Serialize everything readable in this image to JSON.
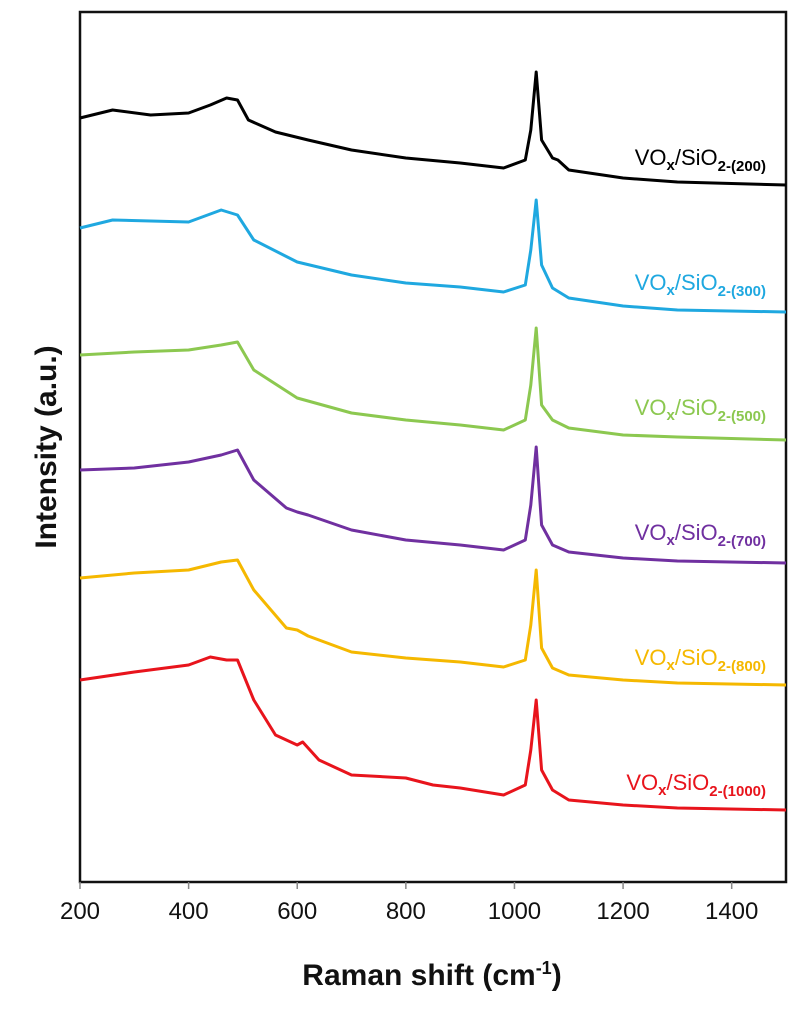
{
  "chart_data": {
    "type": "line",
    "title": "",
    "xlabel": "Raman shift (cm",
    "xlabel_sup": "-1",
    "xlabel_end": ")",
    "ylabel": "Intensity (a.u.)",
    "xlim": [
      200,
      1500
    ],
    "ylim": [
      0,
      870
    ],
    "xticks": [
      "200",
      "400",
      "600",
      "800",
      "1000",
      "1200",
      "1400"
    ],
    "grid": false,
    "legend": "inline labels at right end of each curve",
    "series": [
      {
        "label": {
          "a": "VO",
          "b": "x",
          "c": "/SiO",
          "d": "2-(200)"
        },
        "color": "#000000",
        "x": [
          200,
          260,
          330,
          400,
          440,
          470,
          490,
          510,
          560,
          620,
          700,
          800,
          900,
          980,
          1020,
          1030,
          1040,
          1050,
          1070,
          1080,
          1100,
          1200,
          1300,
          1500
        ],
        "y": [
          764,
          772,
          767,
          769,
          777,
          784,
          782,
          762,
          750,
          742,
          732,
          724,
          719,
          714,
          722,
          752,
          810,
          742,
          724,
          722,
          712,
          704,
          700,
          697
        ]
      },
      {
        "label": {
          "a": "VO",
          "b": "x",
          "c": "/SiO",
          "d": "2-(300)"
        },
        "color": "#1fa8e0",
        "x": [
          200,
          260,
          400,
          460,
          490,
          520,
          600,
          700,
          800,
          900,
          980,
          1020,
          1030,
          1040,
          1050,
          1070,
          1100,
          1200,
          1300,
          1500
        ],
        "y": [
          654,
          662,
          660,
          672,
          667,
          642,
          620,
          607,
          599,
          595,
          590,
          597,
          632,
          682,
          617,
          594,
          584,
          576,
          572,
          570
        ]
      },
      {
        "label": {
          "a": "VO",
          "b": "x",
          "c": "/SiO",
          "d": "2-(500)"
        },
        "color": "#8cc850",
        "x": [
          200,
          300,
          400,
          460,
          490,
          520,
          600,
          700,
          800,
          900,
          980,
          1020,
          1030,
          1040,
          1050,
          1070,
          1100,
          1200,
          1300,
          1500
        ],
        "y": [
          527,
          530,
          532,
          537,
          540,
          512,
          484,
          469,
          462,
          457,
          452,
          462,
          497,
          554,
          477,
          462,
          454,
          447,
          445,
          442
        ]
      },
      {
        "label": {
          "a": "VO",
          "b": "x",
          "c": "/SiO",
          "d": "2-(700)"
        },
        "color": "#7030a0",
        "x": [
          200,
          300,
          400,
          460,
          490,
          520,
          580,
          600,
          620,
          700,
          800,
          900,
          980,
          1020,
          1030,
          1040,
          1050,
          1070,
          1100,
          1200,
          1300,
          1500
        ],
        "y": [
          412,
          414,
          420,
          427,
          432,
          402,
          374,
          370,
          367,
          352,
          342,
          337,
          332,
          342,
          377,
          435,
          357,
          337,
          330,
          324,
          321,
          319
        ]
      },
      {
        "label": {
          "a": "VO",
          "b": "x",
          "c": "/SiO",
          "d": "2-(800)"
        },
        "color": "#f5b800",
        "x": [
          200,
          300,
          400,
          460,
          490,
          520,
          580,
          600,
          620,
          700,
          800,
          900,
          980,
          1020,
          1030,
          1040,
          1050,
          1070,
          1100,
          1200,
          1300,
          1500
        ],
        "y": [
          304,
          309,
          312,
          320,
          322,
          292,
          254,
          252,
          246,
          230,
          224,
          220,
          215,
          222,
          257,
          312,
          234,
          214,
          207,
          202,
          199,
          197
        ]
      },
      {
        "label": {
          "a": "VO",
          "b": "x",
          "c": "/SiO",
          "d": "2-(1000)"
        },
        "color": "#e8141c",
        "x": [
          200,
          300,
          400,
          440,
          470,
          490,
          520,
          560,
          600,
          610,
          640,
          700,
          800,
          850,
          900,
          980,
          1020,
          1030,
          1040,
          1050,
          1070,
          1100,
          1200,
          1300,
          1500
        ],
        "y": [
          202,
          210,
          217,
          225,
          222,
          222,
          182,
          147,
          137,
          140,
          122,
          107,
          104,
          97,
          94,
          87,
          97,
          132,
          182,
          112,
          92,
          82,
          77,
          74,
          72
        ]
      }
    ]
  }
}
